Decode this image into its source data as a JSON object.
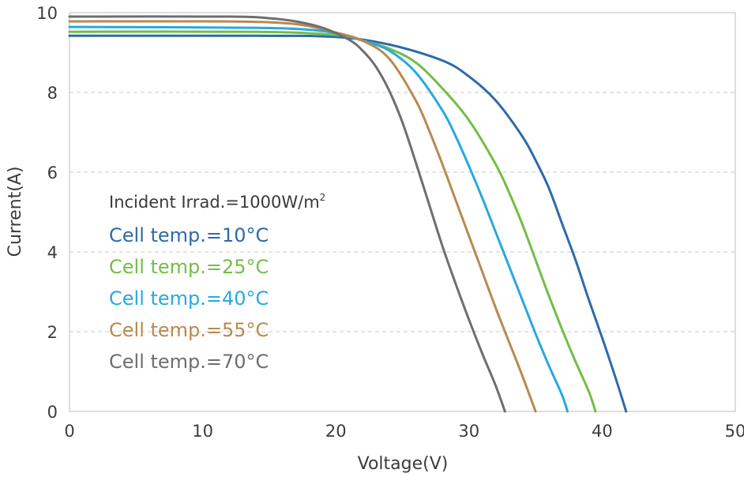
{
  "chart_data": {
    "type": "line",
    "xlabel": "Voltage(V)",
    "ylabel": "Current(A)",
    "xlim": [
      0,
      50
    ],
    "ylim": [
      0,
      10
    ],
    "x_ticks": [
      "0",
      "10",
      "20",
      "30",
      "40",
      "50"
    ],
    "y_ticks": [
      "0",
      "2",
      "4",
      "6",
      "8",
      "10"
    ],
    "grid": "horizontal-dashed",
    "legend_placement": "left",
    "annotation": {
      "text": "Incident Irrad.=1000W/m",
      "superscript": "2"
    },
    "series": [
      {
        "name": "Cell temp.=10°C",
        "color": "#2e6aa8",
        "points": [
          [
            0,
            9.42
          ],
          [
            14,
            9.42
          ],
          [
            20,
            9.39
          ],
          [
            24,
            9.2
          ],
          [
            28,
            8.8
          ],
          [
            30,
            8.4
          ],
          [
            32,
            7.8
          ],
          [
            34,
            6.9
          ],
          [
            35,
            6.3
          ],
          [
            36,
            5.6
          ],
          [
            37,
            4.7
          ],
          [
            38,
            3.8
          ],
          [
            39,
            2.8
          ],
          [
            40,
            1.85
          ],
          [
            41,
            0.85
          ],
          [
            41.8,
            0
          ]
        ]
      },
      {
        "name": "Cell temp.=25°C",
        "color": "#72be47",
        "points": [
          [
            0,
            9.52
          ],
          [
            14,
            9.52
          ],
          [
            20,
            9.44
          ],
          [
            22,
            9.3
          ],
          [
            24,
            9.1
          ],
          [
            26,
            8.75
          ],
          [
            28,
            8.1
          ],
          [
            30,
            7.3
          ],
          [
            32,
            6.2
          ],
          [
            33,
            5.5
          ],
          [
            34,
            4.7
          ],
          [
            35,
            3.8
          ],
          [
            36,
            2.9
          ],
          [
            37,
            2.05
          ],
          [
            38,
            1.25
          ],
          [
            39,
            0.5
          ],
          [
            39.5,
            0
          ]
        ]
      },
      {
        "name": "Cell temp.=40°C",
        "color": "#27a9de",
        "points": [
          [
            0,
            9.64
          ],
          [
            14,
            9.62
          ],
          [
            18,
            9.57
          ],
          [
            20,
            9.48
          ],
          [
            22,
            9.3
          ],
          [
            24,
            9.05
          ],
          [
            26,
            8.5
          ],
          [
            28,
            7.55
          ],
          [
            29,
            6.9
          ],
          [
            30,
            6.15
          ],
          [
            31,
            5.35
          ],
          [
            32,
            4.5
          ],
          [
            33,
            3.65
          ],
          [
            34,
            2.8
          ],
          [
            35,
            1.95
          ],
          [
            36,
            1.15
          ],
          [
            37,
            0.4
          ],
          [
            37.4,
            0
          ]
        ]
      },
      {
        "name": "Cell temp.=55°C",
        "color": "#b88a4e",
        "points": [
          [
            0,
            9.78
          ],
          [
            12,
            9.78
          ],
          [
            16,
            9.74
          ],
          [
            18,
            9.66
          ],
          [
            20,
            9.5
          ],
          [
            22,
            9.3
          ],
          [
            24,
            8.85
          ],
          [
            26,
            7.8
          ],
          [
            27,
            7.05
          ],
          [
            28,
            6.2
          ],
          [
            29,
            5.3
          ],
          [
            30,
            4.4
          ],
          [
            31,
            3.5
          ],
          [
            32,
            2.6
          ],
          [
            33,
            1.75
          ],
          [
            34,
            0.9
          ],
          [
            35,
            0
          ]
        ]
      },
      {
        "name": "Cell temp.=70°C",
        "color": "#6d6e71",
        "points": [
          [
            0,
            9.9
          ],
          [
            12,
            9.9
          ],
          [
            15,
            9.86
          ],
          [
            17,
            9.78
          ],
          [
            19,
            9.62
          ],
          [
            21,
            9.32
          ],
          [
            22,
            9.05
          ],
          [
            23,
            8.65
          ],
          [
            24,
            8.05
          ],
          [
            25,
            7.25
          ],
          [
            26,
            6.25
          ],
          [
            27,
            5.2
          ],
          [
            28,
            4.15
          ],
          [
            29,
            3.2
          ],
          [
            30,
            2.3
          ],
          [
            31,
            1.45
          ],
          [
            32,
            0.65
          ],
          [
            32.7,
            0
          ]
        ]
      }
    ]
  }
}
